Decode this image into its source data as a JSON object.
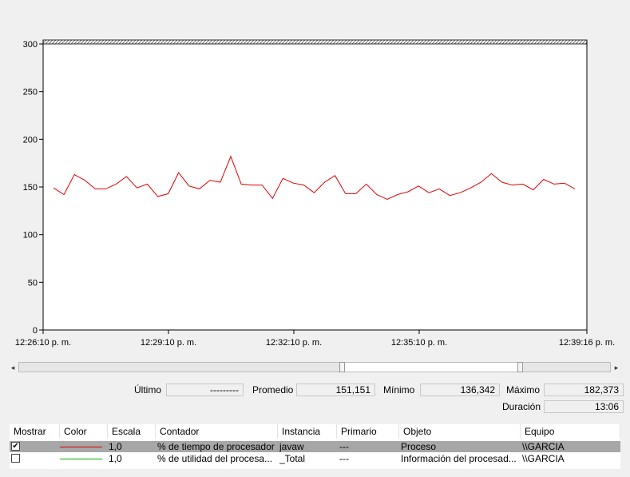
{
  "chart_data": {
    "type": "line",
    "y_ticks": [
      "300",
      "250",
      "200",
      "150",
      "100",
      "50",
      "0"
    ],
    "x_ticks": [
      "12:26:10 p. m.",
      "12:29:10 p. m.",
      "12:32:10 p. m.",
      "12:35:10 p. m.",
      "12:39:16 p. m."
    ],
    "ylim": [
      0,
      300
    ],
    "grid": false,
    "series": [
      {
        "color": "#e00000",
        "values": [
          149,
          142,
          163,
          157,
          148,
          148,
          153,
          161,
          149,
          153,
          140,
          143,
          165,
          151,
          148,
          157,
          155,
          182,
          153,
          152,
          152,
          138,
          159,
          154,
          152,
          144,
          155,
          162,
          143,
          143,
          153,
          142,
          137,
          142,
          145,
          151,
          144,
          148,
          141,
          144,
          149,
          155,
          164,
          155,
          152,
          153,
          147,
          158,
          153,
          154,
          148
        ]
      }
    ]
  },
  "stats": {
    "last_label": "Último",
    "last_value": "---------",
    "avg_label": "Promedio",
    "avg_value": "151,151",
    "min_label": "Mínimo",
    "min_value": "136,342",
    "max_label": "Máximo",
    "max_value": "182,373",
    "duration_label": "Duración",
    "duration_value": "13:06"
  },
  "counters": {
    "headers": [
      "Mostrar",
      "Color",
      "Escala",
      "Contador",
      "Instancia",
      "Primario",
      "Objeto",
      "Equipo"
    ],
    "rows": [
      {
        "show": true,
        "color": "#e00000",
        "scale": "1,0",
        "counter": "% de tiempo de procesador",
        "instance": "javaw",
        "parent": "---",
        "object": "Proceso",
        "computer": "\\\\GARCIA"
      },
      {
        "show": false,
        "color": "#00b000",
        "scale": "1,0",
        "counter": "% de utilidad del procesa...",
        "instance": "_Total",
        "parent": "---",
        "object": "Información del procesad...",
        "computer": "\\\\GARCIA"
      }
    ]
  },
  "icons": {
    "scroll_left": "◂",
    "scroll_right": "▸",
    "checkmark": "✔"
  }
}
